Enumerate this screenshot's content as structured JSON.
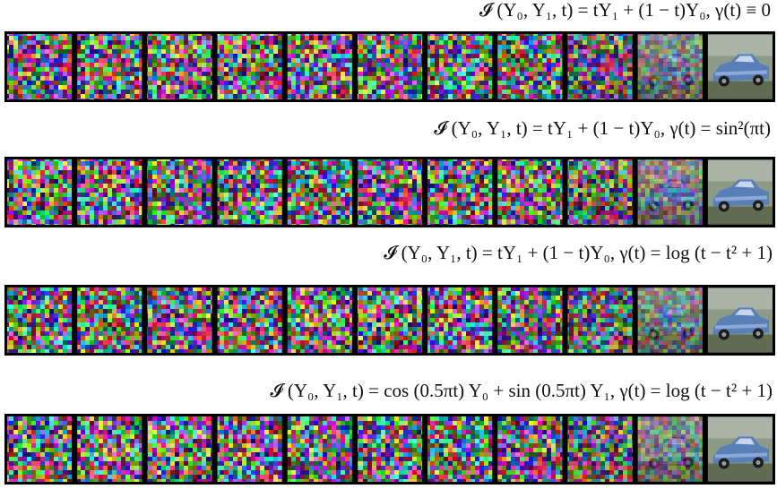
{
  "figure": {
    "rows": [
      {
        "caption": "𝓘 (Y₀, Y₁, t) = tY₁ + (1 − t)Y₀, γ(t) ≡ 0"
      },
      {
        "caption": "𝓘 (Y₀, Y₁, t) = tY₁ + (1 − t)Y₀, γ(t) = sin²(πt)"
      },
      {
        "caption": "𝓘 (Y₀, Y₁, t) = tY₁ + (1 − t)Y₀, γ(t) = log (t − t² + 1)"
      },
      {
        "caption": "𝓘 (Y₀, Y₁, t) = cos (0.5πt) Y₀ + sin (0.5πt) Y₁, γ(t) = log (t − t² + 1)"
      }
    ]
  }
}
